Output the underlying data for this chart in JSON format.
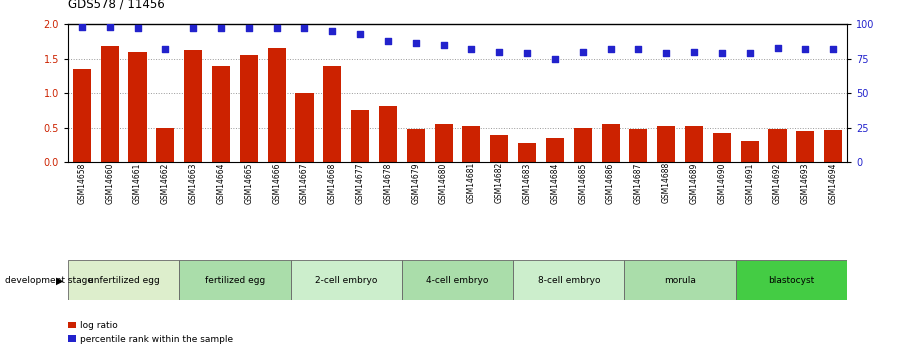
{
  "title": "GDS578 / 11456",
  "categories": [
    "GSM14658",
    "GSM14660",
    "GSM14661",
    "GSM14662",
    "GSM14663",
    "GSM14664",
    "GSM14665",
    "GSM14666",
    "GSM14667",
    "GSM14668",
    "GSM14677",
    "GSM14678",
    "GSM14679",
    "GSM14680",
    "GSM14681",
    "GSM14682",
    "GSM14683",
    "GSM14684",
    "GSM14685",
    "GSM14686",
    "GSM14687",
    "GSM14688",
    "GSM14689",
    "GSM14690",
    "GSM14691",
    "GSM14692",
    "GSM14693",
    "GSM14694"
  ],
  "bar_values": [
    1.35,
    1.68,
    1.59,
    0.5,
    1.62,
    1.4,
    1.55,
    1.65,
    1.0,
    1.4,
    0.75,
    0.82,
    0.48,
    0.55,
    0.52,
    0.4,
    0.28,
    0.35,
    0.5,
    0.55,
    0.48,
    0.52,
    0.53,
    0.42,
    0.3,
    0.48,
    0.45,
    0.47
  ],
  "percentile_values": [
    98,
    98,
    97,
    82,
    97,
    97,
    97,
    97,
    97,
    95,
    93,
    88,
    86,
    85,
    82,
    80,
    79,
    75,
    80,
    82,
    82,
    79,
    80,
    79,
    79,
    83,
    82,
    82
  ],
  "bar_color": "#cc2200",
  "dot_color": "#2222cc",
  "ylim_left": [
    0,
    2
  ],
  "ylim_right": [
    0,
    100
  ],
  "yticks_left": [
    0,
    0.5,
    1.0,
    1.5,
    2.0
  ],
  "yticks_right": [
    0,
    25,
    50,
    75,
    100
  ],
  "stage_groups": [
    {
      "label": "unfertilized egg",
      "start": 0,
      "end": 4,
      "color": "#ddeecc"
    },
    {
      "label": "fertilized egg",
      "start": 4,
      "end": 8,
      "color": "#aaddaa"
    },
    {
      "label": "2-cell embryo",
      "start": 8,
      "end": 12,
      "color": "#cceecc"
    },
    {
      "label": "4-cell embryo",
      "start": 12,
      "end": 16,
      "color": "#aaddaa"
    },
    {
      "label": "8-cell embryo",
      "start": 16,
      "end": 20,
      "color": "#cceecc"
    },
    {
      "label": "morula",
      "start": 20,
      "end": 24,
      "color": "#aaddaa"
    },
    {
      "label": "blastocyst",
      "start": 24,
      "end": 28,
      "color": "#44cc44"
    }
  ],
  "legend_items": [
    {
      "label": "log ratio",
      "color": "#cc2200"
    },
    {
      "label": "percentile rank within the sample",
      "color": "#2222cc"
    }
  ],
  "dev_stage_label": "development stage",
  "background_color": "#ffffff",
  "grid_color": "#999999"
}
